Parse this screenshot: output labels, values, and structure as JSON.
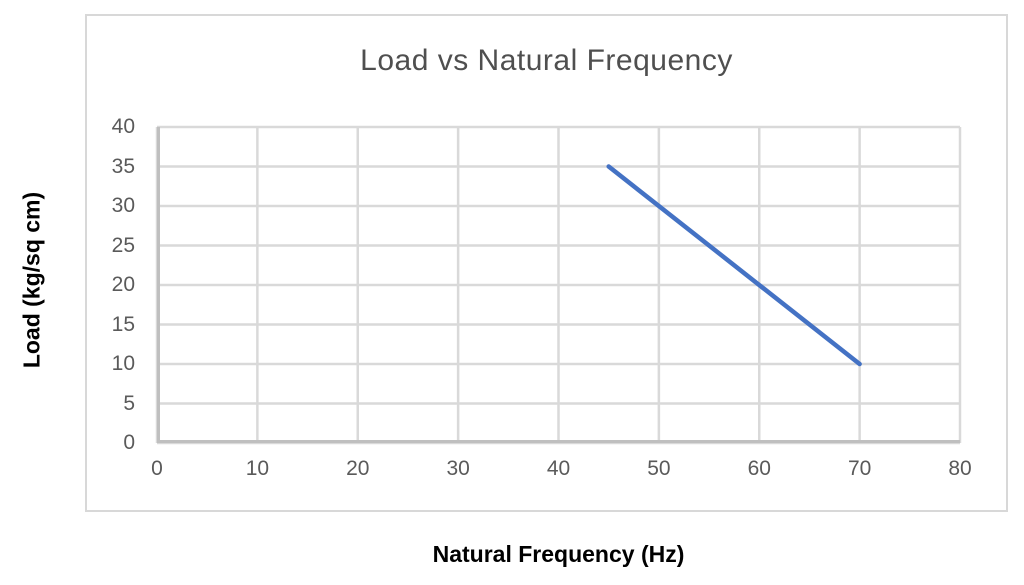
{
  "chart_data": {
    "type": "line",
    "title": "Load vs Natural Frequency",
    "xlabel": "Natural Frequency (Hz)",
    "ylabel": "Load (kg/sq cm)",
    "xlim": [
      0,
      80
    ],
    "ylim": [
      0,
      40
    ],
    "x_ticks": [
      0,
      10,
      20,
      30,
      40,
      50,
      60,
      70,
      80
    ],
    "y_ticks": [
      0,
      5,
      10,
      15,
      20,
      25,
      30,
      35,
      40
    ],
    "grid": true,
    "legend": false,
    "markers": false,
    "series": [
      {
        "name": "Load",
        "color": "#4472c4",
        "points": [
          [
            45,
            35
          ],
          [
            70,
            10
          ]
        ]
      }
    ],
    "colors": {
      "grid": "#d9d9d9",
      "axis_line": "#bfbfbf",
      "chart_border": "#d8d8d8",
      "title_text": "#4f4f4f",
      "tick_text": "#5a5a5a",
      "axis_title_text": "#000000",
      "background": "#ffffff"
    }
  }
}
